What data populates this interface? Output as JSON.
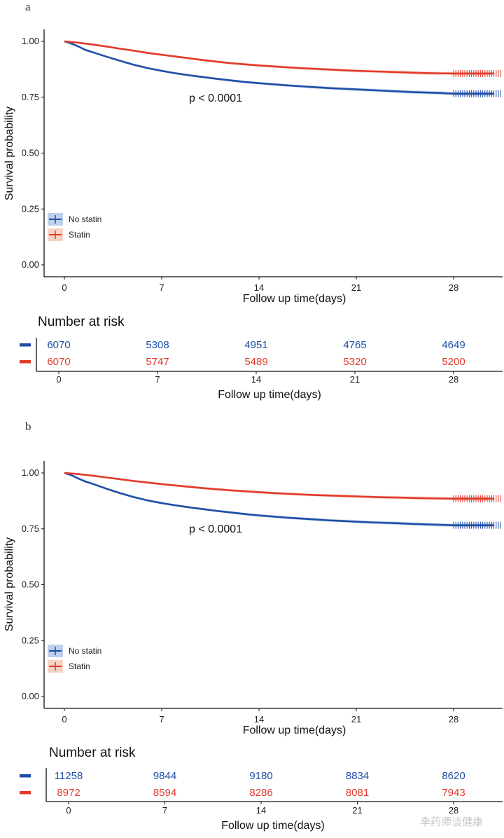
{
  "colors": {
    "no_statin": "#1f4fa6",
    "statin": "#e23a2c",
    "no_statin_band": "#a9bfe6",
    "statin_band": "#f4c4b4"
  },
  "watermark": "李药师谈健康",
  "chart_data": [
    {
      "type": "line",
      "panel": "a",
      "xlabel": "Follow up time(days)",
      "ylabel": "Survival probability",
      "xlim": [
        -2,
        31
      ],
      "ylim": [
        0,
        1.05
      ],
      "x_ticks": [
        "0",
        "7",
        "14",
        "21",
        "28"
      ],
      "y_ticks": [
        "0.00",
        "0.25",
        "0.50",
        "0.75",
        "1.00"
      ],
      "annotation": "p < 0.0001",
      "legend_position": "bottom-left",
      "series": [
        {
          "name": "No statin",
          "x": [
            0,
            0.5,
            1,
            1.5,
            2,
            3,
            4,
            5,
            6,
            7,
            8,
            9,
            10,
            11,
            12,
            13,
            14,
            15,
            16,
            17,
            18,
            19,
            20,
            21,
            22,
            23,
            24,
            25,
            26,
            27,
            28,
            31
          ],
          "y": [
            1.0,
            0.99,
            0.977,
            0.962,
            0.952,
            0.932,
            0.913,
            0.895,
            0.88,
            0.868,
            0.857,
            0.848,
            0.84,
            0.832,
            0.825,
            0.818,
            0.813,
            0.808,
            0.803,
            0.799,
            0.795,
            0.791,
            0.788,
            0.785,
            0.782,
            0.779,
            0.776,
            0.773,
            0.771,
            0.769,
            0.766,
            0.766
          ]
        },
        {
          "name": "Statin",
          "x": [
            0,
            1,
            2,
            3,
            4,
            5,
            6,
            7,
            8,
            9,
            10,
            11,
            12,
            13,
            14,
            15,
            16,
            17,
            18,
            19,
            20,
            21,
            22,
            23,
            24,
            25,
            26,
            27,
            28,
            31
          ],
          "y": [
            1.0,
            0.994,
            0.986,
            0.977,
            0.967,
            0.958,
            0.948,
            0.94,
            0.932,
            0.924,
            0.916,
            0.909,
            0.902,
            0.897,
            0.892,
            0.888,
            0.884,
            0.88,
            0.877,
            0.874,
            0.871,
            0.868,
            0.866,
            0.864,
            0.862,
            0.86,
            0.858,
            0.857,
            0.856,
            0.856
          ]
        }
      ],
      "risk_table": {
        "title": "Number at risk",
        "x_ticks": [
          "0",
          "7",
          "14",
          "21",
          "28"
        ],
        "xlabel": "Follow up time(days)",
        "rows": [
          {
            "series": "No statin",
            "values": [
              "6070",
              "5308",
              "4951",
              "4765",
              "4649"
            ]
          },
          {
            "series": "Statin",
            "values": [
              "6070",
              "5747",
              "5489",
              "5320",
              "5200"
            ]
          }
        ]
      }
    },
    {
      "type": "line",
      "panel": "b",
      "xlabel": "Follow up time(days)",
      "ylabel": "Survival probability",
      "xlim": [
        -2,
        31
      ],
      "ylim": [
        0,
        1.05
      ],
      "x_ticks": [
        "0",
        "7",
        "14",
        "21",
        "28"
      ],
      "y_ticks": [
        "0.00",
        "0.25",
        "0.50",
        "0.75",
        "1.00"
      ],
      "annotation": "p < 0.0001",
      "legend_position": "bottom-left",
      "series": [
        {
          "name": "No statin",
          "x": [
            0,
            0.5,
            1,
            1.5,
            2,
            3,
            4,
            5,
            6,
            7,
            8,
            9,
            10,
            11,
            12,
            13,
            14,
            15,
            16,
            17,
            18,
            19,
            20,
            21,
            22,
            23,
            24,
            25,
            26,
            27,
            28,
            31
          ],
          "y": [
            1.0,
            0.99,
            0.975,
            0.962,
            0.952,
            0.93,
            0.91,
            0.892,
            0.877,
            0.865,
            0.855,
            0.846,
            0.838,
            0.83,
            0.823,
            0.816,
            0.81,
            0.805,
            0.8,
            0.796,
            0.792,
            0.788,
            0.785,
            0.782,
            0.779,
            0.777,
            0.775,
            0.772,
            0.77,
            0.768,
            0.766,
            0.766
          ]
        },
        {
          "name": "Statin",
          "x": [
            0,
            1,
            2,
            3,
            4,
            5,
            6,
            7,
            8,
            9,
            10,
            11,
            12,
            13,
            14,
            15,
            16,
            17,
            18,
            19,
            20,
            21,
            22,
            23,
            24,
            25,
            26,
            27,
            28,
            31
          ],
          "y": [
            1.0,
            0.995,
            0.988,
            0.98,
            0.972,
            0.964,
            0.957,
            0.95,
            0.944,
            0.938,
            0.932,
            0.927,
            0.922,
            0.918,
            0.914,
            0.91,
            0.907,
            0.904,
            0.901,
            0.899,
            0.897,
            0.895,
            0.893,
            0.891,
            0.89,
            0.888,
            0.887,
            0.886,
            0.885,
            0.885
          ]
        }
      ],
      "risk_table": {
        "title": "Number at risk",
        "x_ticks": [
          "0",
          "7",
          "14",
          "21",
          "28"
        ],
        "xlabel": "Follow up time(days)",
        "rows": [
          {
            "series": "No statin",
            "values": [
              "11258",
              "9844",
              "9180",
              "8834",
              "8620"
            ]
          },
          {
            "series": "Statin",
            "values": [
              "8972",
              "8594",
              "8286",
              "8081",
              "7943"
            ]
          }
        ]
      }
    }
  ]
}
